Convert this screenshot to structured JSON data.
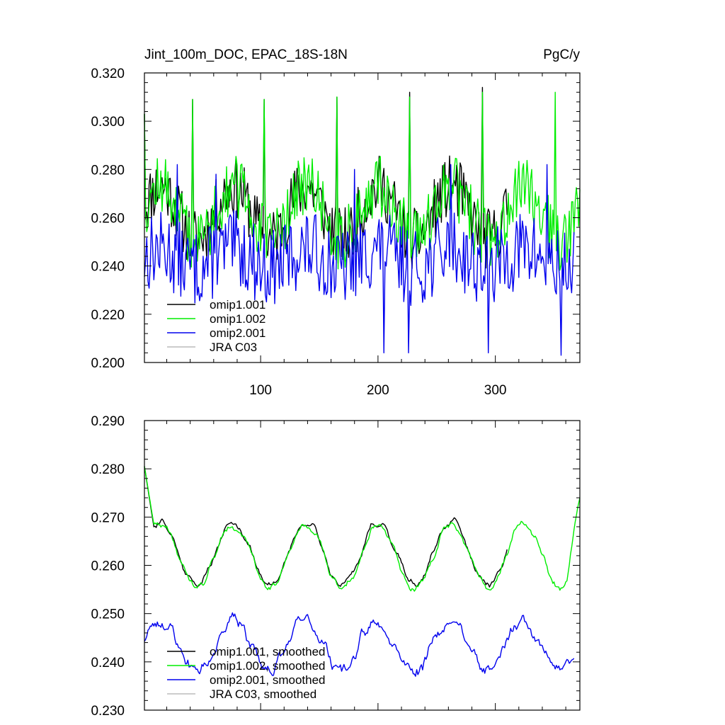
{
  "chart_data": [
    {
      "type": "line",
      "title_left": "Jint_100m_DOC, EPAC_18S-18N",
      "title_right": "PgC/y",
      "xlabel": "",
      "ylabel": "",
      "xlim": [
        1,
        372
      ],
      "ylim": [
        0.2,
        0.32
      ],
      "yticks": [
        "0.200",
        "0.220",
        "0.240",
        "0.260",
        "0.280",
        "0.300",
        "0.320"
      ],
      "xticks": [
        "100",
        "200",
        "300"
      ],
      "legend_position": "bottom-left",
      "series": [
        {
          "name": "omip1.001",
          "color": "#000000",
          "x_end": 310,
          "profile": {
            "base": 0.262,
            "seasonal": 0.011,
            "noise": 0.013,
            "peaks": [
              [
                1,
                0.303
              ],
              [
                42,
                0.309
              ],
              [
                103,
                0.309
              ],
              [
                165,
                0.31
              ],
              [
                227,
                0.312
              ],
              [
                289,
                0.314
              ]
            ],
            "seed": 11
          }
        },
        {
          "name": "omip1.002",
          "color": "#00ee00",
          "x_end": 372,
          "profile": {
            "base": 0.262,
            "seasonal": 0.011,
            "noise": 0.013,
            "peaks": [
              [
                1,
                0.303
              ],
              [
                42,
                0.309
              ],
              [
                103,
                0.309
              ],
              [
                165,
                0.31
              ],
              [
                227,
                0.31
              ],
              [
                289,
                0.312
              ],
              [
                351,
                0.312
              ]
            ],
            "seed": 12
          }
        },
        {
          "name": "omip2.001",
          "color": "#0000ee",
          "x_end": 367,
          "profile": {
            "base": 0.243,
            "seasonal": 0.004,
            "noise": 0.016,
            "peaks": [
              [
                29,
                0.282
              ],
              [
                62,
                0.278
              ],
              [
                180,
                0.28
              ],
              [
                205,
                0.204
              ],
              [
                226,
                0.204
              ],
              [
                262,
                0.282
              ],
              [
                294,
                0.204
              ],
              [
                344,
                0.282
              ],
              [
                356,
                0.203
              ]
            ],
            "seed": 13
          }
        },
        {
          "name": "JRA C03",
          "color": "#bbbbbb",
          "x_end": 0,
          "profile": null
        }
      ]
    },
    {
      "type": "line",
      "title_left": "",
      "title_right": "",
      "xlabel": "",
      "ylabel": "",
      "xlim": [
        1,
        372
      ],
      "ylim": [
        0.23,
        0.29
      ],
      "yticks": [
        "0.230",
        "0.240",
        "0.250",
        "0.260",
        "0.270",
        "0.280",
        "0.290"
      ],
      "xticks": [],
      "legend_position": "bottom-left",
      "series": [
        {
          "name": "omip1.001, smoothed",
          "color": "#000000",
          "x_end": 310,
          "profile": {
            "base": 0.2625,
            "seasonal": 0.0065,
            "noise": 0.0018,
            "start": 0.2805,
            "seed": 21
          }
        },
        {
          "name": "omip1.002, smoothed",
          "color": "#00ee00",
          "x_end": 372,
          "profile": {
            "base": 0.262,
            "seasonal": 0.0065,
            "noise": 0.0018,
            "start": 0.2805,
            "end": 0.274,
            "seed": 22
          }
        },
        {
          "name": "omip2.001, smoothed",
          "color": "#0000ee",
          "x_end": 367,
          "profile": {
            "base": 0.2435,
            "seasonal": 0.005,
            "noise": 0.0035,
            "seed": 23
          }
        },
        {
          "name": "JRA C03, smoothed",
          "color": "#bbbbbb",
          "x_end": 0,
          "profile": null
        }
      ]
    }
  ]
}
